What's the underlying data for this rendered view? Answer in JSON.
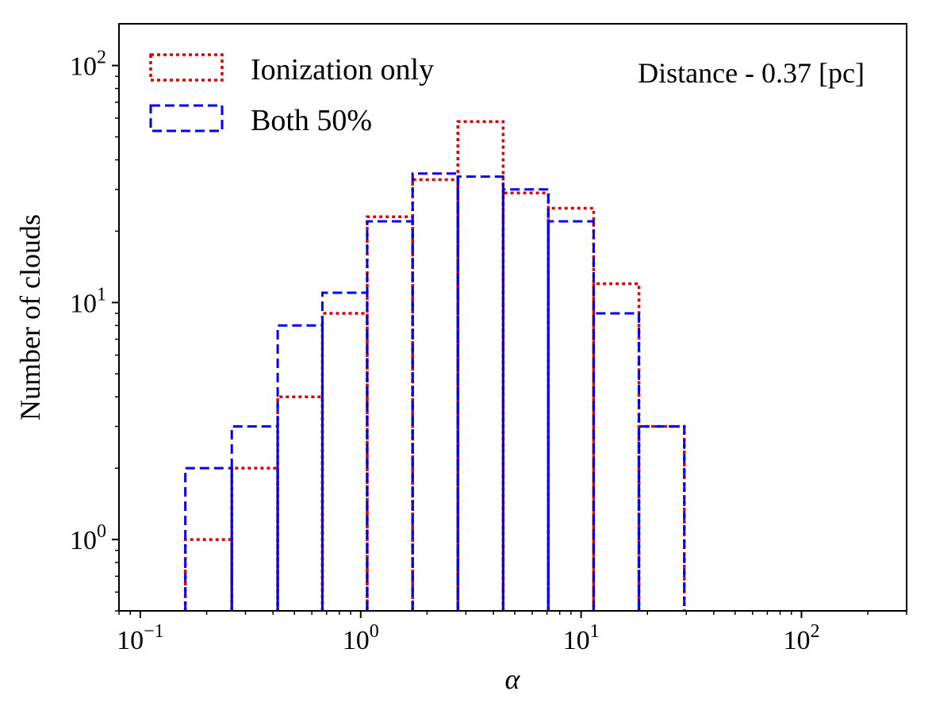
{
  "chart_data": {
    "type": "histogram",
    "xscale": "log",
    "yscale": "log",
    "xlim": [
      0.08,
      300
    ],
    "ylim": [
      0.5,
      150
    ],
    "xlabel": "α",
    "ylabel": "Number of clouds",
    "annotation": "Distance - 0.37 [pc]",
    "x_ticks": [
      {
        "base": "10",
        "exp": "−1",
        "value": 0.1
      },
      {
        "base": "10",
        "exp": "0",
        "value": 1
      },
      {
        "base": "10",
        "exp": "1",
        "value": 10
      },
      {
        "base": "10",
        "exp": "2",
        "value": 100
      }
    ],
    "y_ticks": [
      {
        "base": "10",
        "exp": "0",
        "value": 1
      },
      {
        "base": "10",
        "exp": "1",
        "value": 10
      },
      {
        "base": "10",
        "exp": "2",
        "value": 100
      }
    ],
    "bin_edges": [
      0.16,
      0.26,
      0.42,
      0.67,
      1.07,
      1.72,
      2.76,
      4.43,
      7.1,
      11.4,
      18.3,
      29.4
    ],
    "series": [
      {
        "name": "Ionization only",
        "color": "#dd0000",
        "style": "dotted",
        "values": [
          1,
          2,
          4,
          9,
          23,
          33,
          58,
          29,
          25,
          12,
          3
        ]
      },
      {
        "name": "Both 50%",
        "color": "#0000ee",
        "style": "dashed",
        "values": [
          2,
          3,
          8,
          11,
          22,
          35,
          34,
          30,
          22,
          9,
          3
        ]
      }
    ],
    "legend_position": "top-left"
  }
}
